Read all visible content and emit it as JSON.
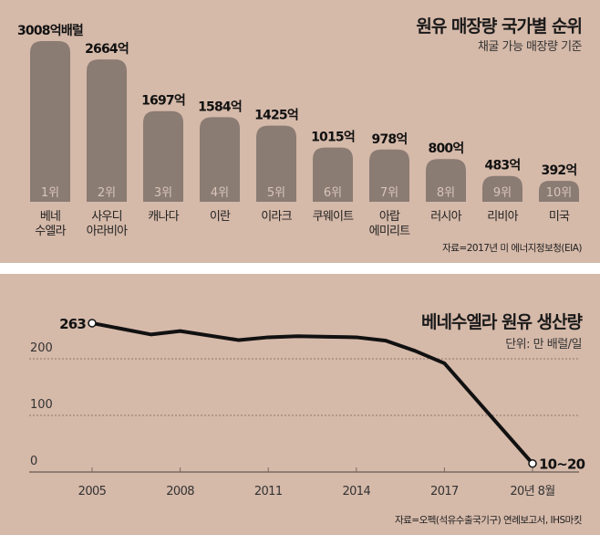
{
  "colors": {
    "background": "#d5b9a9",
    "bar": "#8a7b73",
    "line": "#111111",
    "rank_text": "#d9c5b8"
  },
  "chart_data": [
    {
      "type": "bar",
      "title": "원유 매장량 국가별 순위",
      "subtitle": "채굴 가능 매장량 기준",
      "unit": "억배럴",
      "categories": [
        "베네\n수엘라",
        "사우디\n아라비아",
        "캐나다",
        "이란",
        "이라크",
        "쿠웨이트",
        "아랍\n에미리트",
        "러시아",
        "리비아",
        "미국"
      ],
      "values": [
        3008,
        2664,
        1697,
        1584,
        1425,
        1015,
        978,
        800,
        483,
        392
      ],
      "data_labels": [
        "3008억배럴",
        "2664억",
        "1697억",
        "1584억",
        "1425억",
        "1015억",
        "978억",
        "800억",
        "483억",
        "392억"
      ],
      "rank_labels": [
        "1위",
        "2위",
        "3위",
        "4위",
        "5위",
        "6위",
        "7위",
        "8위",
        "9위",
        "10위"
      ],
      "source": "자료=2017년 미 에너지정보청(EIA)"
    },
    {
      "type": "line",
      "title": "베네수엘라 원유 생산량",
      "subtitle": "단위: 만 배럴/일",
      "x_ticks": [
        "2005",
        "2008",
        "2011",
        "2014",
        "2017",
        "20년 8월"
      ],
      "x_tick_values": [
        2005,
        2008,
        2011,
        2014,
        2017,
        2020
      ],
      "y_ticks": [
        "0",
        "100",
        "200"
      ],
      "y_tick_values": [
        0,
        100,
        200
      ],
      "ylim": [
        0,
        280
      ],
      "grid": "horizontal dotted",
      "x": [
        2005,
        2007,
        2008,
        2010,
        2011,
        2012,
        2013,
        2014,
        2015,
        2016,
        2017,
        2020
      ],
      "values": [
        263,
        243,
        249,
        233,
        238,
        240,
        239,
        238,
        232,
        214,
        192,
        15
      ],
      "annotations": [
        {
          "text": "263",
          "x": 2005
        },
        {
          "text": "10~20",
          "x": 2020
        }
      ],
      "source": "자료=오펙(석유수출국기구) 연례보고서, IHS마킷"
    }
  ]
}
